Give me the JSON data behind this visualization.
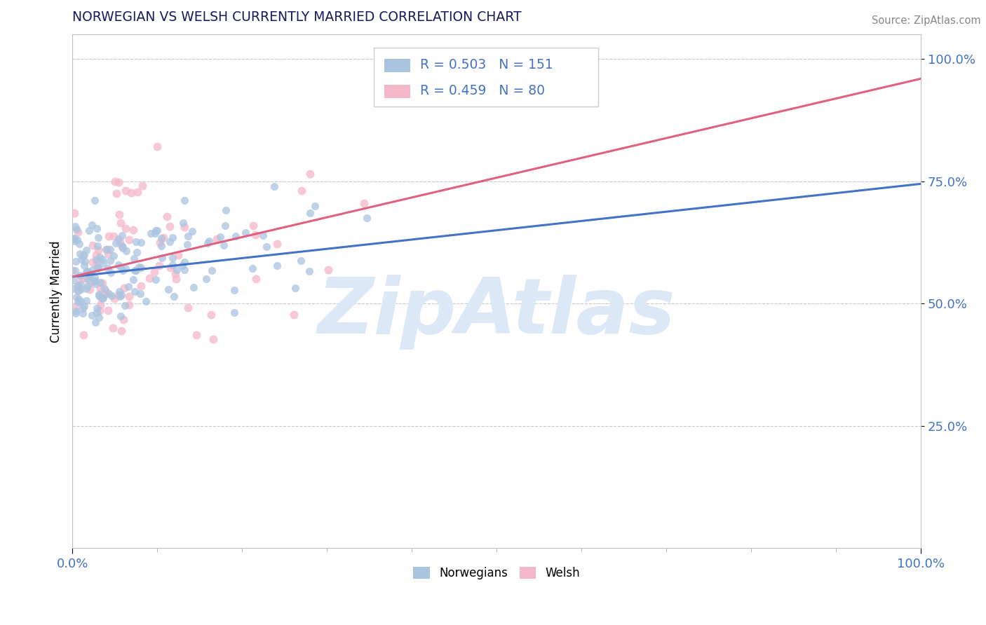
{
  "title": "NORWEGIAN VS WELSH CURRENTLY MARRIED CORRELATION CHART",
  "source": "Source: ZipAtlas.com",
  "ylabel": "Currently Married",
  "xlabel": "",
  "xlim": [
    0.0,
    1.0
  ],
  "ylim": [
    0.0,
    1.05
  ],
  "x_tick_labels": [
    "0.0%",
    "100.0%"
  ],
  "y_tick_labels": [
    "25.0%",
    "50.0%",
    "75.0%",
    "100.0%"
  ],
  "y_tick_vals": [
    0.25,
    0.5,
    0.75,
    1.0
  ],
  "norwegian_color": "#aac4e0",
  "welsh_color": "#f5b8ca",
  "norwegian_line_color": "#4472c4",
  "welsh_line_color": "#e06080",
  "legend_R_norwegian": "R = 0.503",
  "legend_N_norwegian": "N = 151",
  "legend_R_welsh": "R = 0.459",
  "legend_N_welsh": "N = 80",
  "background_color": "#ffffff",
  "title_color": "#1a1a5e",
  "axis_color": "#4472c4",
  "watermark_text": "ZipAtlas",
  "watermark_color": "#dce8f5",
  "norwegian_seed": 42,
  "welsh_seed": 7,
  "norwegian_n": 151,
  "welsh_n": 80,
  "norwegian_R": 0.503,
  "welsh_R": 0.459,
  "nor_line_x0": 0.0,
  "nor_line_y0": 0.555,
  "nor_line_x1": 1.0,
  "nor_line_y1": 0.745,
  "wel_line_x0": 0.0,
  "wel_line_y0": 0.555,
  "wel_line_x1": 1.0,
  "wel_line_y1": 0.96
}
